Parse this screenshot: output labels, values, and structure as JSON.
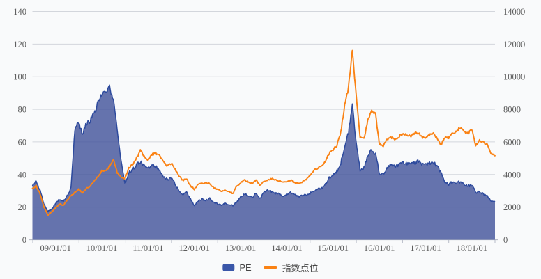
{
  "chart": {
    "x_axis": {
      "labels": [
        "09/01/01",
        "10/01/01",
        "11/01/01",
        "12/01/01",
        "13/01/01",
        "14/01/01",
        "15/01/01",
        "16/01/01",
        "17/01/01",
        "18/01/01"
      ]
    },
    "legend": {
      "items": [
        {
          "label": "PE",
          "marker": "area-swatch"
        },
        {
          "label": "指数点位",
          "marker": "line-swatch"
        }
      ]
    },
    "colors": {
      "background": "#f9fafb",
      "pe_fill": "#6674ae",
      "pe_fill_base": "#40519a",
      "pe_edge": "#2d4a9d",
      "index_line": "#fa8214",
      "legend_pe_swatch": "#3a57a9",
      "grid": "#d3d6dc",
      "axis_line": "#b8bcc8",
      "axis_text": "#5c5c5c"
    }
  },
  "chart_data": {
    "type": "area+line combo, dual y-axis, horizontal grid only, legend bottom-center",
    "x_interval": "monthly",
    "months": [
      "2008-07",
      "2008-08",
      "2008-09",
      "2008-10",
      "2008-11",
      "2008-12",
      "2009-01",
      "2009-02",
      "2009-03",
      "2009-04",
      "2009-05",
      "2009-06",
      "2009-07",
      "2009-08",
      "2009-09",
      "2009-10",
      "2009-11",
      "2009-12",
      "2010-01",
      "2010-02",
      "2010-03",
      "2010-04",
      "2010-05",
      "2010-06",
      "2010-07",
      "2010-08",
      "2010-09",
      "2010-10",
      "2010-11",
      "2010-12",
      "2011-01",
      "2011-02",
      "2011-03",
      "2011-04",
      "2011-05",
      "2011-06",
      "2011-07",
      "2011-08",
      "2011-09",
      "2011-10",
      "2011-11",
      "2011-12",
      "2012-01",
      "2012-02",
      "2012-03",
      "2012-04",
      "2012-05",
      "2012-06",
      "2012-07",
      "2012-08",
      "2012-09",
      "2012-10",
      "2012-11",
      "2012-12",
      "2013-01",
      "2013-02",
      "2013-03",
      "2013-04",
      "2013-05",
      "2013-06",
      "2013-07",
      "2013-08",
      "2013-09",
      "2013-10",
      "2013-11",
      "2013-12",
      "2014-01",
      "2014-02",
      "2014-03",
      "2014-04",
      "2014-05",
      "2014-06",
      "2014-07",
      "2014-08",
      "2014-09",
      "2014-10",
      "2014-11",
      "2014-12",
      "2015-01",
      "2015-02",
      "2015-03",
      "2015-04",
      "2015-05",
      "2015-06",
      "2015-07",
      "2015-08",
      "2015-09",
      "2015-10",
      "2015-11",
      "2015-12",
      "2016-01",
      "2016-02",
      "2016-03",
      "2016-04",
      "2016-05",
      "2016-06",
      "2016-07",
      "2016-08",
      "2016-09",
      "2016-10",
      "2016-11",
      "2016-12",
      "2017-01",
      "2017-02",
      "2017-03",
      "2017-04",
      "2017-05",
      "2017-06",
      "2017-07",
      "2017-08",
      "2017-09",
      "2017-10",
      "2017-11",
      "2017-12",
      "2018-01",
      "2018-02",
      "2018-03",
      "2018-04",
      "2018-05",
      "2018-06",
      "2018-07"
    ],
    "series": [
      {
        "name": "PE",
        "type": "area",
        "axis": "left",
        "values": [
          33,
          36,
          30,
          22,
          17.5,
          19,
          22,
          25,
          23.5,
          27,
          32,
          68,
          72,
          65,
          71,
          73,
          77,
          84,
          88,
          91,
          93,
          85,
          68,
          48,
          34,
          41,
          43,
          46,
          48,
          45,
          44,
          46,
          45,
          43,
          39,
          37,
          38,
          34,
          30,
          28,
          29,
          25,
          20.5,
          24,
          25,
          24,
          25.5,
          23,
          22,
          21,
          22,
          21.5,
          21,
          23,
          26,
          28,
          27,
          26,
          28.5,
          25,
          29,
          30.5,
          29.5,
          28.5,
          28,
          27,
          28,
          29,
          27.5,
          26.5,
          27,
          27.5,
          28.5,
          30,
          31,
          31.5,
          34,
          38,
          40,
          42,
          47,
          58,
          66,
          83,
          60,
          43,
          44,
          52,
          55,
          53,
          41,
          40,
          44,
          46,
          45,
          46,
          47.5,
          47,
          46,
          47,
          48.5,
          46,
          46,
          47,
          47.5,
          45,
          41,
          35,
          34,
          35.5,
          35,
          35.5,
          34,
          33,
          33.5,
          29,
          29.5,
          28,
          27,
          24,
          23
        ]
      },
      {
        "name": "指数点位",
        "type": "line",
        "axis": "right",
        "values": [
          3150,
          3300,
          2800,
          2000,
          1500,
          1700,
          1950,
          2200,
          2100,
          2450,
          2700,
          2900,
          3100,
          2850,
          3150,
          3300,
          3600,
          3900,
          4230,
          4200,
          4500,
          4900,
          4100,
          3850,
          3760,
          4400,
          4600,
          5000,
          5480,
          5100,
          4900,
          5250,
          5300,
          5150,
          4800,
          4500,
          4700,
          4300,
          3900,
          3650,
          3750,
          3300,
          3100,
          3400,
          3450,
          3500,
          3450,
          3200,
          3100,
          2980,
          3050,
          2950,
          2840,
          3300,
          3500,
          3650,
          3550,
          3450,
          3650,
          3350,
          3550,
          3650,
          3750,
          3680,
          3620,
          3560,
          3540,
          3650,
          3500,
          3450,
          3550,
          3700,
          3950,
          4250,
          4400,
          4500,
          4800,
          5300,
          5500,
          5800,
          6600,
          8200,
          9300,
          11600,
          8800,
          6300,
          6200,
          7300,
          7950,
          7700,
          5900,
          5760,
          6150,
          6300,
          6100,
          6300,
          6500,
          6450,
          6350,
          6500,
          6600,
          6300,
          6300,
          6400,
          6500,
          6200,
          5850,
          6300,
          6250,
          6500,
          6700,
          6840,
          6600,
          6500,
          6800,
          5750,
          6100,
          5950,
          5800,
          5300,
          5150
        ]
      }
    ],
    "left_axis": {
      "min": 0,
      "max": 140,
      "tick_step": 20,
      "tick_labels": [
        "0",
        "20",
        "40",
        "60",
        "80",
        "100",
        "120",
        "140"
      ]
    },
    "right_axis": {
      "min": 0,
      "max": 14000,
      "tick_step": 2000,
      "tick_labels": [
        "0",
        "2000",
        "4000",
        "6000",
        "8000",
        "10000",
        "12000",
        "14000"
      ]
    },
    "x_tick_labels": [
      "09/01/01",
      "10/01/01",
      "11/01/01",
      "12/01/01",
      "13/01/01",
      "14/01/01",
      "15/01/01",
      "16/01/01",
      "17/01/01",
      "18/01/01"
    ],
    "title": "",
    "xlabel": "",
    "ylabel_left": "PE",
    "ylabel_right": "指数点位"
  }
}
